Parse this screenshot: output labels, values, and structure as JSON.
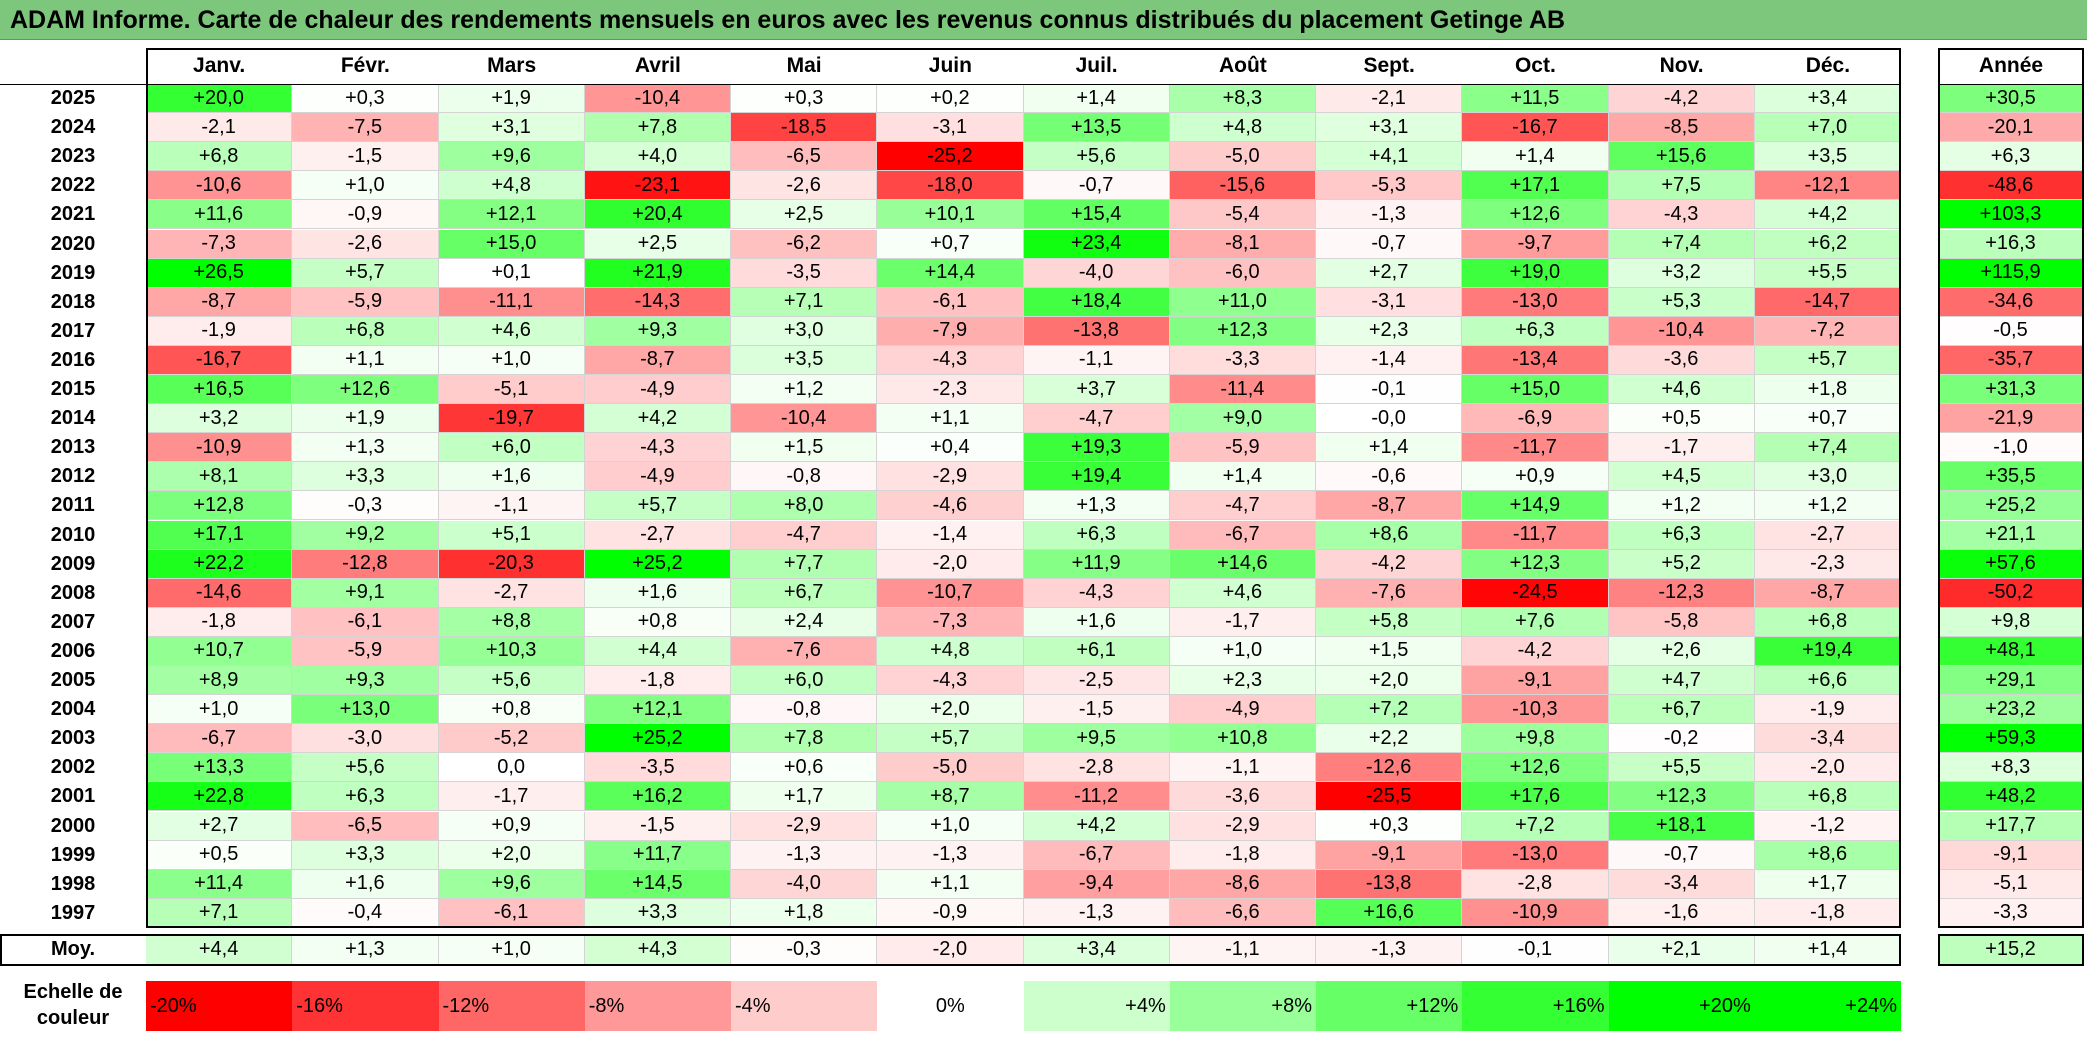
{
  "title": "ADAM Informe. Carte de chaleur des rendements mensuels en euros avec les revenus connus distribués du placement Getinge AB",
  "chart_data": {
    "type": "heatmap",
    "title": "ADAM Informe. Carte de chaleur des rendements mensuels en euros avec les revenus connus distribués du placement Getinge AB",
    "columns": [
      "Janv.",
      "Févr.",
      "Mars",
      "Avril",
      "Mai",
      "Juin",
      "Juil.",
      "Août",
      "Sept.",
      "Oct.",
      "Nov.",
      "Déc."
    ],
    "year_column": "Année",
    "rows": [
      {
        "year": "2025",
        "values": [
          "+20,0",
          "+0,3",
          "+1,9",
          "-10,4",
          "+0,3",
          "+0,2",
          "+1,4",
          "+8,3",
          "-2,1",
          "+11,5",
          "-4,2",
          "+3,4"
        ],
        "annual": "+30,5"
      },
      {
        "year": "2024",
        "values": [
          "-2,1",
          "-7,5",
          "+3,1",
          "+7,8",
          "-18,5",
          "-3,1",
          "+13,5",
          "+4,8",
          "+3,1",
          "-16,7",
          "-8,5",
          "+7,0"
        ],
        "annual": "-20,1"
      },
      {
        "year": "2023",
        "values": [
          "+6,8",
          "-1,5",
          "+9,6",
          "+4,0",
          "-6,5",
          "-25,2",
          "+5,6",
          "-5,0",
          "+4,1",
          "+1,4",
          "+15,6",
          "+3,5"
        ],
        "annual": "+6,3"
      },
      {
        "year": "2022",
        "values": [
          "-10,6",
          "+1,0",
          "+4,8",
          "-23,1",
          "-2,6",
          "-18,0",
          "-0,7",
          "-15,6",
          "-5,3",
          "+17,1",
          "+7,5",
          "-12,1"
        ],
        "annual": "-48,6"
      },
      {
        "year": "2021",
        "values": [
          "+11,6",
          "-0,9",
          "+12,1",
          "+20,4",
          "+2,5",
          "+10,1",
          "+15,4",
          "-5,4",
          "-1,3",
          "+12,6",
          "-4,3",
          "+4,2"
        ],
        "annual": "+103,3"
      },
      {
        "year": "2020",
        "values": [
          "-7,3",
          "-2,6",
          "+15,0",
          "+2,5",
          "-6,2",
          "+0,7",
          "+23,4",
          "-8,1",
          "-0,7",
          "-9,7",
          "+7,4",
          "+6,2"
        ],
        "annual": "+16,3"
      },
      {
        "year": "2019",
        "values": [
          "+26,5",
          "+5,7",
          "+0,1",
          "+21,9",
          "-3,5",
          "+14,4",
          "-4,0",
          "-6,0",
          "+2,7",
          "+19,0",
          "+3,2",
          "+5,5"
        ],
        "annual": "+115,9"
      },
      {
        "year": "2018",
        "values": [
          "-8,7",
          "-5,9",
          "-11,1",
          "-14,3",
          "+7,1",
          "-6,1",
          "+18,4",
          "+11,0",
          "-3,1",
          "-13,0",
          "+5,3",
          "-14,7"
        ],
        "annual": "-34,6"
      },
      {
        "year": "2017",
        "values": [
          "-1,9",
          "+6,8",
          "+4,6",
          "+9,3",
          "+3,0",
          "-7,9",
          "-13,8",
          "+12,3",
          "+2,3",
          "+6,3",
          "-10,4",
          "-7,2"
        ],
        "annual": "-0,5"
      },
      {
        "year": "2016",
        "values": [
          "-16,7",
          "+1,1",
          "+1,0",
          "-8,7",
          "+3,5",
          "-4,3",
          "-1,1",
          "-3,3",
          "-1,4",
          "-13,4",
          "-3,6",
          "+5,7"
        ],
        "annual": "-35,7"
      },
      {
        "year": "2015",
        "values": [
          "+16,5",
          "+12,6",
          "-5,1",
          "-4,9",
          "+1,2",
          "-2,3",
          "+3,7",
          "-11,4",
          "-0,1",
          "+15,0",
          "+4,6",
          "+1,8"
        ],
        "annual": "+31,3"
      },
      {
        "year": "2014",
        "values": [
          "+3,2",
          "+1,9",
          "-19,7",
          "+4,2",
          "-10,4",
          "+1,1",
          "-4,7",
          "+9,0",
          "-0,0",
          "-6,9",
          "+0,5",
          "+0,7"
        ],
        "annual": "-21,9"
      },
      {
        "year": "2013",
        "values": [
          "-10,9",
          "+1,3",
          "+6,0",
          "-4,3",
          "+1,5",
          "+0,4",
          "+19,3",
          "-5,9",
          "+1,4",
          "-11,7",
          "-1,7",
          "+7,4"
        ],
        "annual": "-1,0"
      },
      {
        "year": "2012",
        "values": [
          "+8,1",
          "+3,3",
          "+1,6",
          "-4,9",
          "-0,8",
          "-2,9",
          "+19,4",
          "+1,4",
          "-0,6",
          "+0,9",
          "+4,5",
          "+3,0"
        ],
        "annual": "+35,5"
      },
      {
        "year": "2011",
        "values": [
          "+12,8",
          "-0,3",
          "-1,1",
          "+5,7",
          "+8,0",
          "-4,6",
          "+1,3",
          "-4,7",
          "-8,7",
          "+14,9",
          "+1,2",
          "+1,2"
        ],
        "annual": "+25,2"
      },
      {
        "year": "2010",
        "values": [
          "+17,1",
          "+9,2",
          "+5,1",
          "-2,7",
          "-4,7",
          "-1,4",
          "+6,3",
          "-6,7",
          "+8,6",
          "-11,7",
          "+6,3",
          "-2,7"
        ],
        "annual": "+21,1"
      },
      {
        "year": "2009",
        "values": [
          "+22,2",
          "-12,8",
          "-20,3",
          "+25,2",
          "+7,7",
          "-2,0",
          "+11,9",
          "+14,6",
          "-4,2",
          "+12,3",
          "+5,2",
          "-2,3"
        ],
        "annual": "+57,6"
      },
      {
        "year": "2008",
        "values": [
          "-14,6",
          "+9,1",
          "-2,7",
          "+1,6",
          "+6,7",
          "-10,7",
          "-4,3",
          "+4,6",
          "-7,6",
          "-24,5",
          "-12,3",
          "-8,7"
        ],
        "annual": "-50,2"
      },
      {
        "year": "2007",
        "values": [
          "-1,8",
          "-6,1",
          "+8,8",
          "+0,8",
          "+2,4",
          "-7,3",
          "+1,6",
          "-1,7",
          "+5,8",
          "+7,6",
          "-5,8",
          "+6,8"
        ],
        "annual": "+9,8"
      },
      {
        "year": "2006",
        "values": [
          "+10,7",
          "-5,9",
          "+10,3",
          "+4,4",
          "-7,6",
          "+4,8",
          "+6,1",
          "+1,0",
          "+1,5",
          "-4,2",
          "+2,6",
          "+19,4"
        ],
        "annual": "+48,1"
      },
      {
        "year": "2005",
        "values": [
          "+8,9",
          "+9,3",
          "+5,6",
          "-1,8",
          "+6,0",
          "-4,3",
          "-2,5",
          "+2,3",
          "+2,0",
          "-9,1",
          "+4,7",
          "+6,6"
        ],
        "annual": "+29,1"
      },
      {
        "year": "2004",
        "values": [
          "+1,0",
          "+13,0",
          "+0,8",
          "+12,1",
          "-0,8",
          "+2,0",
          "-1,5",
          "-4,9",
          "+7,2",
          "-10,3",
          "+6,7",
          "-1,9"
        ],
        "annual": "+23,2"
      },
      {
        "year": "2003",
        "values": [
          "-6,7",
          "-3,0",
          "-5,2",
          "+25,2",
          "+7,8",
          "+5,7",
          "+9,5",
          "+10,8",
          "+2,2",
          "+9,8",
          "-0,2",
          "-3,4"
        ],
        "annual": "+59,3"
      },
      {
        "year": "2002",
        "values": [
          "+13,3",
          "+5,6",
          "0,0",
          "-3,5",
          "+0,6",
          "-5,0",
          "-2,8",
          "-1,1",
          "-12,6",
          "+12,6",
          "+5,5",
          "-2,0"
        ],
        "annual": "+8,3"
      },
      {
        "year": "2001",
        "values": [
          "+22,8",
          "+6,3",
          "-1,7",
          "+16,2",
          "+1,7",
          "+8,7",
          "-11,2",
          "-3,6",
          "-25,5",
          "+17,6",
          "+12,3",
          "+6,8"
        ],
        "annual": "+48,2"
      },
      {
        "year": "2000",
        "values": [
          "+2,7",
          "-6,5",
          "+0,9",
          "-1,5",
          "-2,9",
          "+1,0",
          "+4,2",
          "-2,9",
          "+0,3",
          "+7,2",
          "+18,1",
          "-1,2"
        ],
        "annual": "+17,7"
      },
      {
        "year": "1999",
        "values": [
          "+0,5",
          "+3,3",
          "+2,0",
          "+11,7",
          "-1,3",
          "-1,3",
          "-6,7",
          "-1,8",
          "-9,1",
          "-13,0",
          "-0,7",
          "+8,6"
        ],
        "annual": "-9,1"
      },
      {
        "year": "1998",
        "values": [
          "+11,4",
          "+1,6",
          "+9,6",
          "+14,5",
          "-4,0",
          "+1,1",
          "-9,4",
          "-8,6",
          "-13,8",
          "-2,8",
          "-3,4",
          "+1,7"
        ],
        "annual": "-5,1"
      },
      {
        "year": "1997",
        "values": [
          "+7,1",
          "-0,4",
          "-6,1",
          "+3,3",
          "+1,8",
          "-0,9",
          "-1,3",
          "-6,6",
          "+16,6",
          "-10,9",
          "-1,6",
          "-1,8"
        ],
        "annual": "-3,3"
      }
    ],
    "average": {
      "label": "Moy.",
      "values": [
        "+4,4",
        "+1,3",
        "+1,0",
        "+4,3",
        "-0,3",
        "-2,0",
        "+3,4",
        "-1,1",
        "-1,3",
        "-0,1",
        "+2,1",
        "+1,4"
      ],
      "annual": "+15,2"
    },
    "color_scale": {
      "label_line1": "Echelle de",
      "label_line2": "couleur",
      "stops": [
        "-20%",
        "-16%",
        "-12%",
        "-8%",
        "-4%",
        "0%",
        "+4%",
        "+8%",
        "+12%",
        "+16%",
        "+20%",
        "+24%"
      ],
      "negative_color": "#ff0000",
      "zero_color": "#ffffff",
      "positive_color": "#00ff00"
    }
  }
}
